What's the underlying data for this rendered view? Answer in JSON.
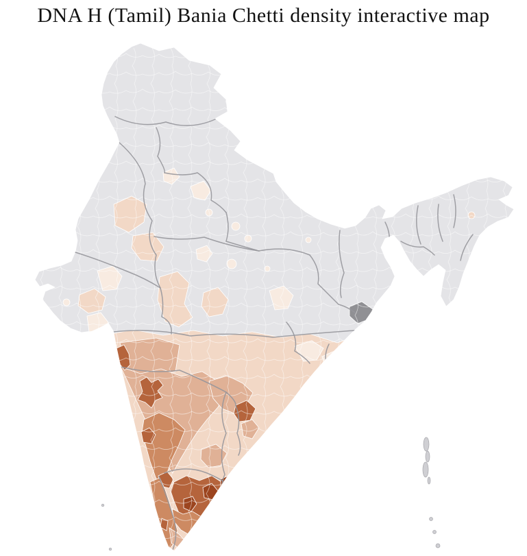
{
  "page": {
    "title": "DNA H (Tamil) Bania Chetti density interactive map"
  },
  "map": {
    "aria_label": "Interactive district-level density choropleth map of India",
    "background": "#ffffff",
    "palette": {
      "no_data": "#e4e4e7",
      "no_data_dark": "#909094",
      "island_gray": "#cfcfd3",
      "level_1": "#f8ebe1",
      "level_2": "#f2d8c6",
      "level_3": "#e0b196",
      "level_4": "#cd8a62",
      "level_5": "#b5643c",
      "level_6": "#9c451f",
      "outline": "#a6a6ab",
      "state_border": "#96969b",
      "district_border": "#ffffff"
    },
    "regions": [
      {
        "id": "india-base",
        "level": "no_data"
      },
      {
        "id": "peninsula-base",
        "level": "level_2"
      },
      {
        "id": "maharashtra-west",
        "level": "level_3"
      },
      {
        "id": "deccan-band",
        "level": "level_3"
      },
      {
        "id": "karnataka-core",
        "level": "level_4"
      },
      {
        "id": "telangana-band",
        "level": "level_3"
      },
      {
        "id": "rayalaseema",
        "level": "level_3"
      },
      {
        "id": "andhra-coast-medium",
        "level": "level_3"
      },
      {
        "id": "andhra-coast-dark",
        "level": "level_5"
      },
      {
        "id": "konkan-dark",
        "level": "level_5"
      },
      {
        "id": "pune-star",
        "level": "level_5"
      },
      {
        "id": "karnataka-dark-1",
        "level": "level_5"
      },
      {
        "id": "karnataka-dark-2",
        "level": "level_5"
      },
      {
        "id": "kerala-strip",
        "level": "level_4"
      },
      {
        "id": "kerala-dark",
        "level": "level_5"
      },
      {
        "id": "tamilnadu-core",
        "level": "level_5"
      },
      {
        "id": "tn-south",
        "level": "level_4"
      },
      {
        "id": "tn-tip",
        "level": "level_3"
      },
      {
        "id": "tn-dark-1",
        "level": "level_6"
      },
      {
        "id": "tn-dark-2",
        "level": "level_6"
      },
      {
        "id": "chennai-dark",
        "level": "level_6"
      },
      {
        "id": "rajasthan-patch-1",
        "level": "level_2"
      },
      {
        "id": "rajasthan-patch-2",
        "level": "level_2"
      },
      {
        "id": "rajasthan-patch-3",
        "level": "level_1"
      },
      {
        "id": "punjab-patch",
        "level": "level_1"
      },
      {
        "id": "up-patch-1",
        "level": "level_1"
      },
      {
        "id": "up-dot-1",
        "level": "level_1"
      },
      {
        "id": "up-dot-2",
        "level": "level_1"
      },
      {
        "id": "up-dot-3",
        "level": "level_1"
      },
      {
        "id": "delhi-patch",
        "level": "level_1"
      },
      {
        "id": "mp-patch-1",
        "level": "level_2"
      },
      {
        "id": "mp-patch-2",
        "level": "level_2"
      },
      {
        "id": "mp-dot-1",
        "level": "level_1"
      },
      {
        "id": "mp-dot-2",
        "level": "level_1"
      },
      {
        "id": "jharkhand-patch",
        "level": "level_1"
      },
      {
        "id": "bihar-dot",
        "level": "level_1"
      },
      {
        "id": "gujarat-patch-1",
        "level": "level_2"
      },
      {
        "id": "gujarat-patch-2",
        "level": "level_1"
      },
      {
        "id": "gujarat-dot",
        "level": "level_1"
      },
      {
        "id": "northeast-dot",
        "level": "level_2"
      },
      {
        "id": "odisha-patch-1",
        "level": "level_1"
      },
      {
        "id": "odisha-patch-2",
        "level": "level_1"
      },
      {
        "id": "sundarbans",
        "level": "no_data_dark"
      },
      {
        "id": "islands",
        "level": "island_gray"
      }
    ]
  }
}
